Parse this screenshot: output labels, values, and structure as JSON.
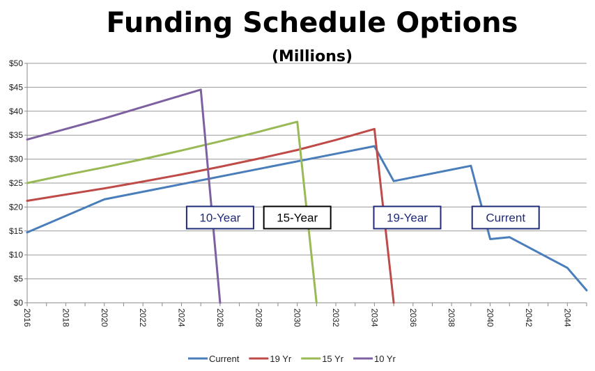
{
  "chart_data": {
    "type": "line",
    "title": "Funding Schedule Options",
    "subtitle": "(Millions)",
    "xlabel": "",
    "ylabel": "",
    "xlim": [
      2016,
      2045
    ],
    "ylim": [
      0,
      50
    ],
    "x_ticks": [
      "2016",
      "2018",
      "2020",
      "2022",
      "2024",
      "2026",
      "2028",
      "2030",
      "2032",
      "2034",
      "2036",
      "2038",
      "2040",
      "2042",
      "2044"
    ],
    "y_ticks": [
      "$0",
      "$5",
      "$10",
      "$15",
      "$20",
      "$25",
      "$30",
      "$35",
      "$40",
      "$45",
      "$50"
    ],
    "grid": true,
    "legend_position": "bottom",
    "series": [
      {
        "name": "Current",
        "color": "#4a7ebb",
        "x": [
          2016,
          2020,
          2034,
          2035,
          2039,
          2040,
          2041,
          2044,
          2045
        ],
        "y": [
          14.7,
          21.6,
          32.7,
          25.4,
          28.6,
          13.3,
          13.7,
          7.3,
          2.6
        ]
      },
      {
        "name": "19 Yr",
        "color": "#be4b48",
        "x": [
          2016,
          2018,
          2020,
          2022,
          2024,
          2026,
          2028,
          2030,
          2032,
          2034,
          2035
        ],
        "y": [
          21.3,
          22.6,
          23.9,
          25.3,
          26.8,
          28.4,
          30.1,
          31.9,
          34.0,
          36.3,
          0
        ]
      },
      {
        "name": "15 Yr",
        "color": "#98b954",
        "x": [
          2016,
          2018,
          2020,
          2022,
          2024,
          2026,
          2028,
          2030,
          2031
        ],
        "y": [
          25.0,
          26.7,
          28.3,
          30.0,
          31.8,
          33.7,
          35.7,
          37.8,
          0
        ]
      },
      {
        "name": "10 Yr",
        "color": "#7d60a0",
        "x": [
          2016,
          2018,
          2020,
          2022,
          2024,
          2025,
          2026
        ],
        "y": [
          34.1,
          36.3,
          38.5,
          40.9,
          43.3,
          44.5,
          0
        ]
      }
    ],
    "annotations": [
      {
        "text": "10-Year",
        "color": "#1f2a7a"
      },
      {
        "text": "15-Year",
        "color": "#000000"
      },
      {
        "text": "19-Year",
        "color": "#1f2a7a"
      },
      {
        "text": "Current",
        "color": "#1f2a7a"
      }
    ],
    "axis_color": "#8a8a8a",
    "grid_color": "#9a9a9a"
  }
}
